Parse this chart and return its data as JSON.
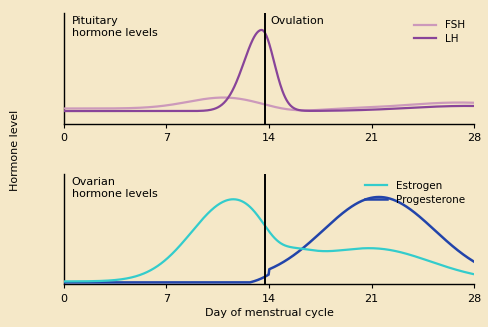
{
  "background_color": "#f5e8c8",
  "axes_bg": "#f5e8c8",
  "ovulation_label": "Ovulation",
  "ovulation_day": 13.7,
  "x_ticks": [
    0,
    7,
    14,
    21,
    28
  ],
  "xlabel": "Day of menstrual cycle",
  "ylabel": "Hormone level",
  "fsh_color": "#cc99bb",
  "lh_color": "#884499",
  "estrogen_color": "#33cccc",
  "progesterone_color": "#2244aa",
  "legend_fontsize": 7.5,
  "label_fontsize": 8,
  "tick_fontsize": 8,
  "title_fontsize": 8
}
